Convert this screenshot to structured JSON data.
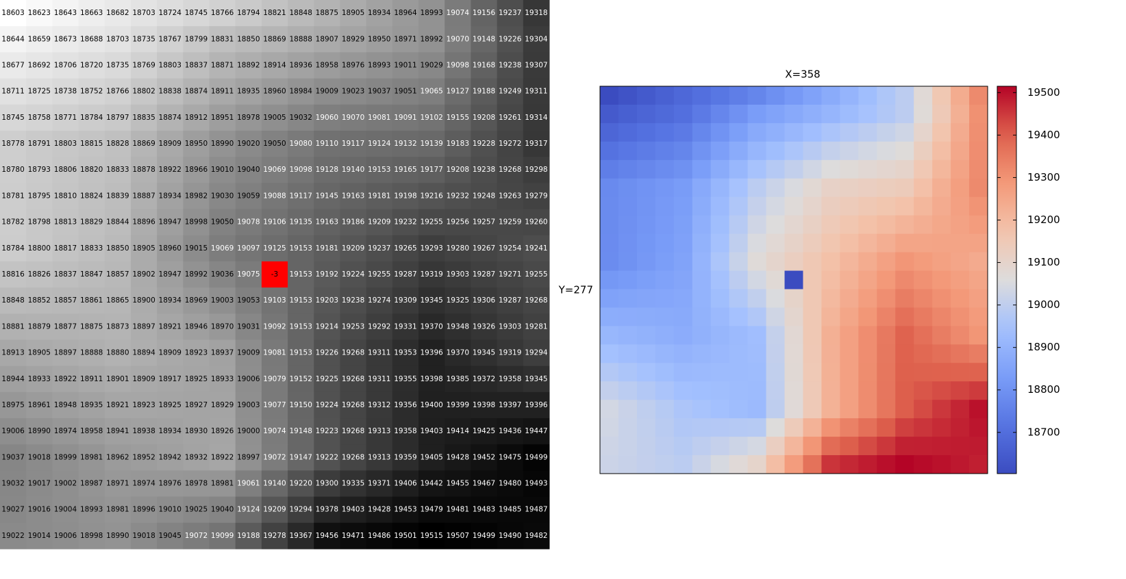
{
  "table": {
    "rows": [
      [
        18603,
        18623,
        18643,
        18663,
        18682,
        18703,
        18724,
        18745,
        18766,
        18794,
        18821,
        18848,
        18875,
        18905,
        18934,
        18964,
        18993,
        19074,
        19156,
        19237,
        19318
      ],
      [
        18644,
        18659,
        18673,
        18688,
        18703,
        18735,
        18767,
        18799,
        18831,
        18850,
        18869,
        18888,
        18907,
        18929,
        18950,
        18971,
        18992,
        19070,
        19148,
        19226,
        19304
      ],
      [
        18677,
        18692,
        18706,
        18720,
        18735,
        18769,
        18803,
        18837,
        18871,
        18892,
        18914,
        18936,
        18958,
        18976,
        18993,
        19011,
        19029,
        19098,
        19168,
        19238,
        19307
      ],
      [
        18711,
        18725,
        18738,
        18752,
        18766,
        18802,
        18838,
        18874,
        18911,
        18935,
        18960,
        18984,
        19009,
        19023,
        19037,
        19051,
        19065,
        19127,
        19188,
        19249,
        19311
      ],
      [
        18745,
        18758,
        18771,
        18784,
        18797,
        18835,
        18874,
        18912,
        18951,
        18978,
        19005,
        19032,
        19060,
        19070,
        19081,
        19091,
        19102,
        19155,
        19208,
        19261,
        19314
      ],
      [
        18778,
        18791,
        18803,
        18815,
        18828,
        18869,
        18909,
        18950,
        18990,
        19020,
        19050,
        19080,
        19110,
        19117,
        19124,
        19132,
        19139,
        19183,
        19228,
        19272,
        19317
      ],
      [
        18780,
        18793,
        18806,
        18820,
        18833,
        18878,
        18922,
        18966,
        19010,
        19040,
        19069,
        19098,
        19128,
        19140,
        19153,
        19165,
        19177,
        19208,
        19238,
        19268,
        19298
      ],
      [
        18781,
        18795,
        18810,
        18824,
        18839,
        18887,
        18934,
        18982,
        19030,
        19059,
        19088,
        19117,
        19145,
        19163,
        19181,
        19198,
        19216,
        19232,
        19248,
        19263,
        19279
      ],
      [
        18782,
        18798,
        18813,
        18829,
        18844,
        18896,
        18947,
        18998,
        19050,
        19078,
        19106,
        19135,
        19163,
        19186,
        19209,
        19232,
        19255,
        19256,
        19257,
        19259,
        19260
      ],
      [
        18784,
        18800,
        18817,
        18833,
        18850,
        18905,
        18960,
        19015,
        19069,
        19097,
        19125,
        19153,
        19181,
        19209,
        19237,
        19265,
        19293,
        19280,
        19267,
        19254,
        19241
      ],
      [
        18816,
        18826,
        18837,
        18847,
        18857,
        18902,
        18947,
        18992,
        19036,
        19075,
        -3,
        19153,
        19192,
        19224,
        19255,
        19287,
        19319,
        19303,
        19287,
        19271,
        19255
      ],
      [
        18848,
        18852,
        18857,
        18861,
        18865,
        18900,
        18934,
        18969,
        19003,
        19053,
        19103,
        19153,
        19203,
        19238,
        19274,
        19309,
        19345,
        19325,
        19306,
        19287,
        19268
      ],
      [
        18881,
        18879,
        18877,
        18875,
        18873,
        18897,
        18921,
        18946,
        18970,
        19031,
        19092,
        19153,
        19214,
        19253,
        19292,
        19331,
        19370,
        19348,
        19326,
        19303,
        19281
      ],
      [
        18913,
        18905,
        18897,
        18888,
        18880,
        18894,
        18909,
        18923,
        18937,
        19009,
        19081,
        19153,
        19226,
        19268,
        19311,
        19353,
        19396,
        19370,
        19345,
        19319,
        19294
      ],
      [
        18944,
        18933,
        18922,
        18911,
        18901,
        18909,
        18917,
        18925,
        18933,
        19006,
        19079,
        19152,
        19225,
        19268,
        19311,
        19355,
        19398,
        19385,
        19372,
        19358,
        19345
      ],
      [
        18975,
        18961,
        18948,
        18935,
        18921,
        18923,
        18925,
        18927,
        18929,
        19003,
        19077,
        19150,
        19224,
        19268,
        19312,
        19356,
        19400,
        19399,
        19398,
        19397,
        19396
      ],
      [
        19006,
        18990,
        18974,
        18958,
        18941,
        18938,
        18934,
        18930,
        18926,
        19000,
        19074,
        19148,
        19223,
        19268,
        19313,
        19358,
        19403,
        19414,
        19425,
        19436,
        19447
      ],
      [
        19037,
        19018,
        18999,
        18981,
        18962,
        18952,
        18942,
        18932,
        18922,
        18997,
        19072,
        19147,
        19222,
        19268,
        19313,
        19359,
        19405,
        19428,
        19452,
        19475,
        19499
      ],
      [
        19032,
        19017,
        19002,
        18987,
        18971,
        18974,
        18976,
        18978,
        18981,
        19061,
        19140,
        19220,
        19300,
        19335,
        19371,
        19406,
        19442,
        19455,
        19467,
        19480,
        19493
      ],
      [
        19027,
        19016,
        19004,
        18993,
        18981,
        18996,
        19010,
        19025,
        19040,
        19124,
        19209,
        19294,
        19378,
        19403,
        19428,
        19453,
        19479,
        19481,
        19483,
        19485,
        19487
      ],
      [
        19022,
        19014,
        19006,
        18998,
        18990,
        19018,
        19045,
        19072,
        19099,
        19188,
        19278,
        19367,
        19456,
        19471,
        19486,
        19501,
        19515,
        19507,
        19499,
        19490,
        19482
      ]
    ],
    "out_of_range_color": "#ff0000"
  },
  "chart_data": {
    "type": "heatmap",
    "title": "X=358",
    "ylabel": "Y=277",
    "clim": [
      18603,
      19515
    ],
    "cticks": [
      18700,
      18800,
      18900,
      19000,
      19100,
      19200,
      19300,
      19400,
      19500
    ]
  }
}
